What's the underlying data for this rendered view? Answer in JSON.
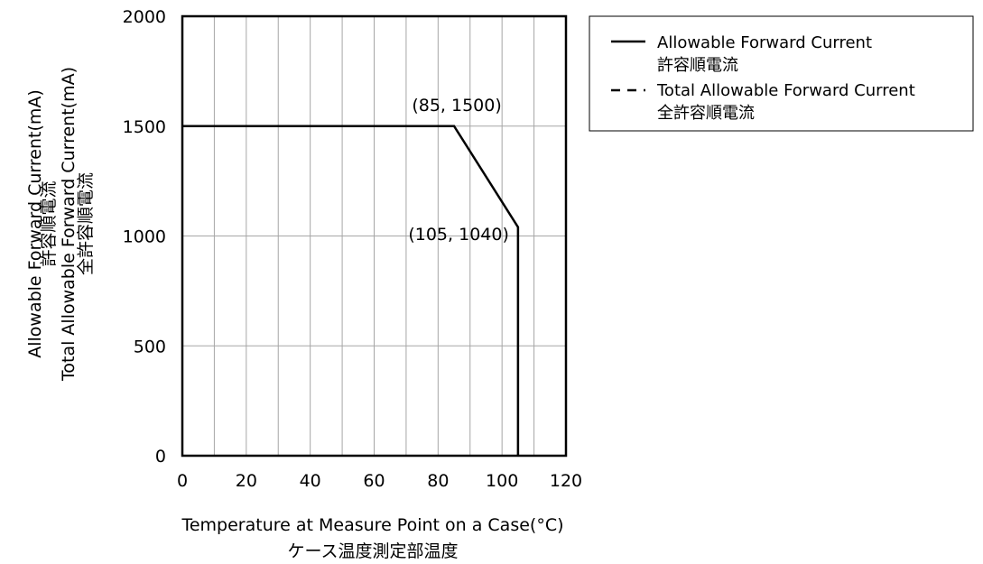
{
  "chart_data": {
    "type": "line",
    "title": "",
    "xlabel": [
      "Temperature at Measure Point on a Case(°C)",
      "ケース温度測定部温度"
    ],
    "ylabel": [
      "Allowable Forward Current(mA)",
      "許容順電流",
      "Total Allowable Forward Current(mA)",
      "全許容順電流"
    ],
    "xlim": [
      0,
      120
    ],
    "ylim": [
      0,
      2000
    ],
    "xticks": [
      0,
      20,
      40,
      60,
      80,
      100,
      120
    ],
    "yticks": [
      0,
      500,
      1000,
      1500,
      2000
    ],
    "grid": true,
    "legend_placement": "outside-right",
    "series": [
      {
        "name": [
          "Allowable Forward Current",
          "許容順電流"
        ],
        "style": "solid",
        "points": [
          [
            0,
            1500
          ],
          [
            85,
            1500
          ],
          [
            105,
            1040
          ],
          [
            105,
            0
          ]
        ]
      },
      {
        "name": [
          "Total Allowable Forward Current",
          "全許容順電流"
        ],
        "style": "dashed",
        "points": []
      }
    ],
    "annotations": [
      {
        "text": "(85, 1500)",
        "x": 85,
        "y": 1500
      },
      {
        "text": "(105, 1040)",
        "x": 105,
        "y": 1040
      }
    ]
  },
  "colors": {
    "line": "#000000",
    "grid": "#a6a6a6",
    "frame": "#000000",
    "background": "#ffffff"
  }
}
